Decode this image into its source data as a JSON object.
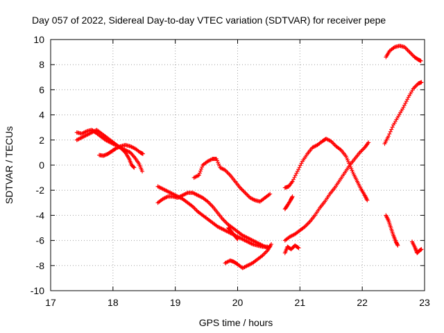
{
  "chart_data": {
    "type": "scatter",
    "title": "Day 057 of 2022, Sidereal Day-to-day VTEC variation (SDTVAR) for receiver pepe",
    "xlabel": "GPS time / hours",
    "ylabel": "SDTVAR / TECUs",
    "xlim": [
      17,
      23
    ],
    "ylim": [
      -10,
      10
    ],
    "xticks": [
      "17",
      "18",
      "19",
      "20",
      "21",
      "22",
      "23"
    ],
    "yticks": [
      "-10",
      "-8",
      "-6",
      "-4",
      "-2",
      "0",
      "2",
      "4",
      "6",
      "8",
      "10"
    ],
    "grid": true,
    "marker": "+",
    "color": "#ff0000",
    "series": [
      {
        "points": [
          [
            17.42,
            2.6
          ],
          [
            17.5,
            2.5
          ],
          [
            17.58,
            2.7
          ],
          [
            17.66,
            2.8
          ],
          [
            17.72,
            2.6
          ],
          [
            17.8,
            2.3
          ],
          [
            17.88,
            2.0
          ],
          [
            17.96,
            1.8
          ],
          [
            18.04,
            1.6
          ],
          [
            18.12,
            1.4
          ],
          [
            18.2,
            1.2
          ],
          [
            18.28,
            1.0
          ],
          [
            18.35,
            0.6
          ],
          [
            18.42,
            0.1
          ],
          [
            18.47,
            -0.5
          ]
        ]
      },
      {
        "points": [
          [
            17.42,
            2.0
          ],
          [
            17.5,
            2.2
          ],
          [
            17.58,
            2.4
          ],
          [
            17.66,
            2.6
          ],
          [
            17.74,
            2.8
          ],
          [
            17.82,
            2.5
          ],
          [
            17.9,
            2.2
          ],
          [
            17.98,
            1.9
          ],
          [
            18.06,
            1.6
          ],
          [
            18.14,
            1.3
          ],
          [
            18.2,
            1.0
          ],
          [
            18.26,
            0.5
          ],
          [
            18.3,
            0.0
          ],
          [
            18.34,
            -0.2
          ]
        ]
      },
      {
        "points": [
          [
            17.78,
            0.8
          ],
          [
            17.85,
            0.75
          ],
          [
            17.92,
            0.9
          ],
          [
            17.98,
            1.1
          ],
          [
            18.04,
            1.3
          ],
          [
            18.12,
            1.5
          ],
          [
            18.2,
            1.6
          ],
          [
            18.28,
            1.5
          ],
          [
            18.36,
            1.3
          ],
          [
            18.44,
            1.0
          ],
          [
            18.48,
            0.9
          ]
        ]
      },
      {
        "points": [
          [
            18.72,
            -1.7
          ],
          [
            18.8,
            -1.9
          ],
          [
            18.88,
            -2.1
          ],
          [
            18.96,
            -2.3
          ],
          [
            19.04,
            -2.5
          ],
          [
            19.12,
            -2.7
          ],
          [
            19.2,
            -3.0
          ],
          [
            19.28,
            -3.3
          ],
          [
            19.36,
            -3.7
          ],
          [
            19.44,
            -4.0
          ],
          [
            19.52,
            -4.3
          ],
          [
            19.6,
            -4.6
          ],
          [
            19.68,
            -4.9
          ],
          [
            19.76,
            -5.1
          ],
          [
            19.84,
            -5.3
          ],
          [
            19.92,
            -5.5
          ],
          [
            20.0,
            -5.7
          ],
          [
            20.08,
            -5.9
          ],
          [
            20.16,
            -6.1
          ],
          [
            20.24,
            -6.3
          ],
          [
            20.32,
            -6.4
          ],
          [
            20.4,
            -6.5
          ],
          [
            20.48,
            -6.5
          ]
        ]
      },
      {
        "points": [
          [
            18.72,
            -3.0
          ],
          [
            18.8,
            -2.7
          ],
          [
            18.88,
            -2.5
          ],
          [
            18.96,
            -2.5
          ],
          [
            19.04,
            -2.6
          ],
          [
            19.12,
            -2.4
          ],
          [
            19.2,
            -2.2
          ],
          [
            19.28,
            -2.2
          ],
          [
            19.36,
            -2.4
          ],
          [
            19.44,
            -2.6
          ],
          [
            19.52,
            -2.9
          ],
          [
            19.6,
            -3.3
          ],
          [
            19.68,
            -3.8
          ],
          [
            19.76,
            -4.3
          ],
          [
            19.84,
            -4.7
          ],
          [
            19.92,
            -5.0
          ],
          [
            20.0,
            -5.3
          ],
          [
            20.08,
            -5.6
          ],
          [
            20.16,
            -5.8
          ],
          [
            20.24,
            -6.0
          ],
          [
            20.32,
            -6.2
          ],
          [
            20.4,
            -6.4
          ],
          [
            20.48,
            -6.6
          ],
          [
            20.52,
            -6.5
          ]
        ]
      },
      {
        "points": [
          [
            19.3,
            -1.0
          ],
          [
            19.38,
            -0.8
          ],
          [
            19.44,
            0.0
          ],
          [
            19.52,
            0.3
          ],
          [
            19.6,
            0.5
          ],
          [
            19.66,
            0.5
          ],
          [
            19.72,
            -0.2
          ],
          [
            19.8,
            -0.4
          ],
          [
            19.88,
            -0.8
          ],
          [
            19.96,
            -1.3
          ],
          [
            20.04,
            -1.8
          ],
          [
            20.12,
            -2.2
          ],
          [
            20.2,
            -2.6
          ],
          [
            20.28,
            -2.8
          ],
          [
            20.36,
            -2.9
          ],
          [
            20.44,
            -2.6
          ],
          [
            20.52,
            -2.3
          ]
        ]
      },
      {
        "points": [
          [
            19.8,
            -7.8
          ],
          [
            19.88,
            -7.6
          ],
          [
            19.94,
            -7.7
          ],
          [
            20.0,
            -7.9
          ],
          [
            20.08,
            -8.2
          ],
          [
            20.16,
            -8.0
          ],
          [
            20.24,
            -7.8
          ],
          [
            20.32,
            -7.5
          ],
          [
            20.4,
            -7.2
          ],
          [
            20.48,
            -6.8
          ],
          [
            20.54,
            -6.3
          ]
        ]
      },
      {
        "points": [
          [
            19.85,
            -5.0
          ],
          [
            19.9,
            -5.3
          ],
          [
            19.95,
            -5.6
          ],
          [
            20.0,
            -5.9
          ]
        ]
      },
      {
        "points": [
          [
            20.76,
            -1.8
          ],
          [
            20.82,
            -1.7
          ],
          [
            20.88,
            -1.3
          ],
          [
            20.96,
            -0.5
          ],
          [
            21.04,
            0.3
          ],
          [
            21.12,
            0.9
          ],
          [
            21.2,
            1.4
          ],
          [
            21.28,
            1.6
          ],
          [
            21.36,
            1.9
          ],
          [
            21.42,
            2.1
          ],
          [
            21.5,
            1.9
          ],
          [
            21.58,
            1.5
          ],
          [
            21.66,
            1.2
          ],
          [
            21.74,
            0.7
          ],
          [
            21.8,
            0.0
          ],
          [
            21.86,
            -0.7
          ],
          [
            21.92,
            -1.3
          ],
          [
            21.98,
            -1.9
          ],
          [
            22.04,
            -2.4
          ],
          [
            22.08,
            -2.8
          ]
        ]
      },
      {
        "points": [
          [
            20.76,
            -3.5
          ],
          [
            20.8,
            -3.2
          ],
          [
            20.85,
            -2.8
          ],
          [
            20.88,
            -2.5
          ]
        ]
      },
      {
        "points": [
          [
            20.76,
            -6.0
          ],
          [
            20.84,
            -5.7
          ],
          [
            20.92,
            -5.5
          ],
          [
            21.0,
            -5.2
          ],
          [
            21.08,
            -4.9
          ],
          [
            21.16,
            -4.5
          ],
          [
            21.24,
            -4.0
          ],
          [
            21.32,
            -3.4
          ],
          [
            21.4,
            -2.9
          ],
          [
            21.48,
            -2.3
          ],
          [
            21.56,
            -1.8
          ],
          [
            21.64,
            -1.2
          ],
          [
            21.72,
            -0.6
          ],
          [
            21.8,
            0.0
          ],
          [
            21.88,
            0.5
          ],
          [
            21.96,
            1.0
          ],
          [
            22.04,
            1.4
          ],
          [
            22.1,
            1.8
          ]
        ]
      },
      {
        "points": [
          [
            20.76,
            -7.0
          ],
          [
            20.8,
            -6.5
          ],
          [
            20.86,
            -6.7
          ],
          [
            20.92,
            -6.4
          ],
          [
            20.98,
            -6.6
          ]
        ]
      },
      {
        "points": [
          [
            22.36,
            1.7
          ],
          [
            22.42,
            2.3
          ],
          [
            22.5,
            3.2
          ],
          [
            22.58,
            3.9
          ],
          [
            22.66,
            4.6
          ],
          [
            22.74,
            5.4
          ],
          [
            22.82,
            6.1
          ],
          [
            22.9,
            6.5
          ],
          [
            22.95,
            6.6
          ]
        ]
      },
      {
        "points": [
          [
            22.38,
            8.6
          ],
          [
            22.44,
            9.1
          ],
          [
            22.52,
            9.4
          ],
          [
            22.6,
            9.5
          ],
          [
            22.68,
            9.4
          ],
          [
            22.76,
            9.0
          ],
          [
            22.84,
            8.6
          ],
          [
            22.9,
            8.4
          ],
          [
            22.94,
            8.3
          ]
        ]
      },
      {
        "points": [
          [
            22.38,
            -4.0
          ],
          [
            22.42,
            -4.4
          ],
          [
            22.46,
            -5.0
          ],
          [
            22.5,
            -5.6
          ],
          [
            22.54,
            -6.1
          ],
          [
            22.57,
            -6.4
          ]
        ]
      },
      {
        "points": [
          [
            22.8,
            -6.1
          ],
          [
            22.85,
            -6.6
          ],
          [
            22.88,
            -7.0
          ],
          [
            22.92,
            -6.8
          ],
          [
            22.95,
            -6.7
          ]
        ]
      }
    ]
  }
}
